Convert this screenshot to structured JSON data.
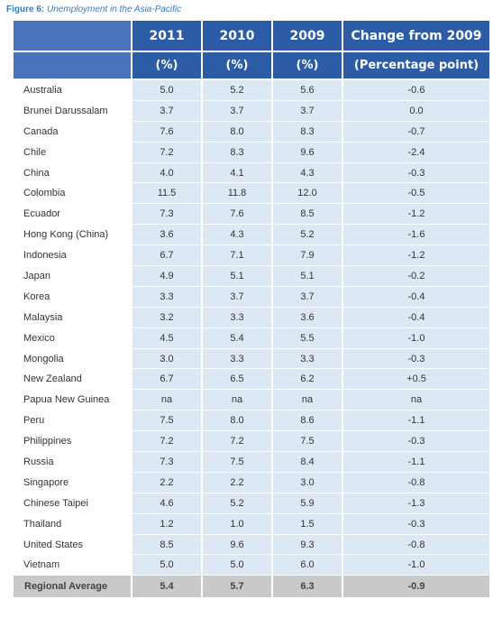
{
  "caption": {
    "lead": "Figure 6:",
    "rest": "Unemployment in the Asia-Pacific"
  },
  "headers": {
    "row1": [
      "",
      "2011",
      "2010",
      "2009",
      "Change from 2009"
    ],
    "row2": [
      "",
      "(%)",
      "(%)",
      "(%)",
      "(Percentage point)"
    ]
  },
  "rows": [
    [
      "Australia",
      "5.0",
      "5.2",
      "5.6",
      "-0.6"
    ],
    [
      "Brunei Darussalam",
      "3.7",
      "3.7",
      "3.7",
      "0.0"
    ],
    [
      "Canada",
      "7.6",
      "8.0",
      "8.3",
      "-0.7"
    ],
    [
      "Chile",
      "7.2",
      "8.3",
      "9.6",
      "-2.4"
    ],
    [
      "China",
      "4.0",
      "4.1",
      "4.3",
      "-0.3"
    ],
    [
      "Colombia",
      "11.5",
      "11.8",
      "12.0",
      "-0.5"
    ],
    [
      "Ecuador",
      "7.3",
      "7.6",
      "8.5",
      "-1.2"
    ],
    [
      "Hong Kong (China)",
      "3.6",
      "4.3",
      "5.2",
      "-1.6"
    ],
    [
      "Indonesia",
      "6.7",
      "7.1",
      "7.9",
      "-1.2"
    ],
    [
      "Japan",
      "4.9",
      "5.1",
      "5.1",
      "-0.2"
    ],
    [
      "Korea",
      "3.3",
      "3.7",
      "3.7",
      "-0.4"
    ],
    [
      "Malaysia",
      "3.2",
      "3.3",
      "3.6",
      "-0.4"
    ],
    [
      "Mexico",
      "4.5",
      "5.4",
      "5.5",
      "-1.0"
    ],
    [
      "Mongolia",
      "3.0",
      "3.3",
      "3.3",
      "-0.3"
    ],
    [
      "New Zealand",
      "6.7",
      "6.5",
      "6.2",
      "+0.5"
    ],
    [
      "Papua New Guinea",
      "na",
      "na",
      "na",
      "na"
    ],
    [
      "Peru",
      "7.5",
      "8.0",
      "8.6",
      "-1.1"
    ],
    [
      "Philippines",
      "7.2",
      "7.2",
      "7.5",
      "-0.3"
    ],
    [
      "Russia",
      "7.3",
      "7.5",
      "8.4",
      "-1.1"
    ],
    [
      "Singapore",
      "2.2",
      "2.2",
      "3.0",
      "-0.8"
    ],
    [
      "Chinese Taipei",
      "4.6",
      "5.2",
      "5.9",
      "-1.3"
    ],
    [
      "Thailand",
      "1.2",
      "1.0",
      "1.5",
      "-0.3"
    ],
    [
      "United States",
      "8.5",
      "9.6",
      "9.3",
      "-0.8"
    ],
    [
      "Vietnam",
      "5.0",
      "5.0",
      "6.0",
      "-1.0"
    ]
  ],
  "average": [
    "Regional Average",
    "5.4",
    "5.7",
    "6.3",
    "-0.9"
  ],
  "colors": {
    "header": "#2c5ca6",
    "header_corner": "#4673ba",
    "cell": "#dde8f5",
    "average_row": "#c9c9c9",
    "caption": "#3a7ab8"
  }
}
